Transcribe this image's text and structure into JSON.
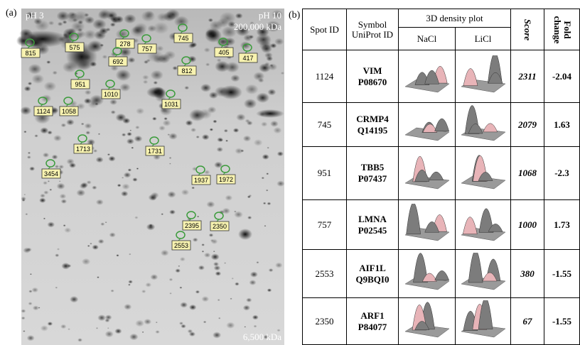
{
  "panel_a": {
    "label": "(a)",
    "ph_left": "pH 3",
    "ph_right": "pH 10",
    "mw_top": "200,000 kDa",
    "mw_bottom": "6,500 kDa",
    "spots": [
      "815",
      "575",
      "278",
      "745",
      "405",
      "417",
      "692",
      "757",
      "812",
      "951",
      "1010",
      "1031",
      "1124",
      "1058",
      "1713",
      "1731",
      "1937",
      "1972",
      "3454",
      "2395",
      "2350",
      "2553"
    ]
  },
  "panel_b": {
    "label": "(b)",
    "headers": {
      "spot_id": "Spot ID",
      "symbol": "Symbol UniProt ID",
      "density": "3D density plot",
      "nacl": "NaCl",
      "licl": "LiCl",
      "score": "Score",
      "fold": "Fold change"
    },
    "rows": [
      {
        "spot_id": "1124",
        "symbol": "VIM",
        "uniprot": "P08670",
        "score": "2311",
        "fold_change": "-2.04"
      },
      {
        "spot_id": "745",
        "symbol": "CRMP4",
        "uniprot": "Q14195",
        "score": "2079",
        "fold_change": "1.63"
      },
      {
        "spot_id": "951",
        "symbol": "TBB5",
        "uniprot": "P07437",
        "score": "1068",
        "fold_change": "-2.3"
      },
      {
        "spot_id": "757",
        "symbol": "LMNA",
        "uniprot": "P02545",
        "score": "1000",
        "fold_change": "1.73"
      },
      {
        "spot_id": "2553",
        "symbol": "AIF1L",
        "uniprot": "Q9BQI0",
        "score": "380",
        "fold_change": "-1.55"
      },
      {
        "spot_id": "2350",
        "symbol": "ARF1",
        "uniprot": "P84077",
        "score": "67",
        "fold_change": "-1.55"
      }
    ]
  }
}
